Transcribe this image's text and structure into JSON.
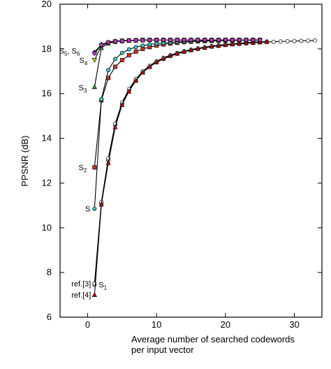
{
  "chart_data": {
    "type": "line",
    "title": "",
    "xlabel": "Average number of searched codewords",
    "xlabel_line2": "per input vector",
    "ylabel": "PPSNR (dB)",
    "xlim": [
      -4,
      34
    ],
    "ylim": [
      6,
      20
    ],
    "xticks": [
      0,
      10,
      20,
      30
    ],
    "yticks": [
      6,
      8,
      10,
      12,
      14,
      16,
      18,
      20
    ],
    "xtick_labels": [
      "0",
      "10",
      "20",
      "30"
    ],
    "ytick_labels": [
      "6",
      "8",
      "10",
      "12",
      "14",
      "16",
      "18",
      "20"
    ],
    "grid": false,
    "legend": "none",
    "series": [
      {
        "label": "S1",
        "color": "#ffffff",
        "marker": "circle",
        "x": [
          1,
          2,
          3,
          4,
          5,
          6,
          7,
          8,
          9,
          10,
          11,
          12,
          13,
          14,
          15,
          16,
          17,
          18,
          19,
          20,
          21,
          22,
          23,
          24,
          25,
          26,
          27,
          28,
          29,
          30,
          31,
          32,
          33
        ],
        "y": [
          7.45,
          11.1,
          13.0,
          14.6,
          15.55,
          16.15,
          16.6,
          16.95,
          17.2,
          17.4,
          17.55,
          17.68,
          17.78,
          17.87,
          17.94,
          18.0,
          18.05,
          18.1,
          18.13,
          18.17,
          18.2,
          18.22,
          18.25,
          18.27,
          18.29,
          18.31,
          18.32,
          18.33,
          18.34,
          18.35,
          18.36,
          18.37,
          18.38
        ]
      },
      {
        "label": "ref.[3]",
        "color": "#ffffff",
        "marker": "circle",
        "x": [
          1,
          2,
          3,
          4,
          5,
          6,
          7,
          8,
          9,
          10,
          11,
          12,
          13,
          14,
          15,
          16,
          17,
          18,
          19,
          20,
          21,
          22,
          23,
          24,
          25,
          26
        ],
        "y": [
          7.5,
          11.15,
          13.1,
          14.65,
          15.6,
          16.2,
          16.65,
          17.0,
          17.25,
          17.45,
          17.6,
          17.72,
          17.82,
          17.9,
          17.97,
          18.03,
          18.08,
          18.13,
          18.16,
          18.2,
          18.23,
          18.25,
          18.28,
          18.3,
          18.32,
          18.33
        ]
      },
      {
        "label": "ref.[4]",
        "color": "#cc0000",
        "marker": "triangle",
        "x": [
          1,
          2,
          3,
          4,
          5,
          6,
          7,
          8,
          9,
          10,
          11,
          12,
          13,
          14,
          15,
          16,
          17,
          18,
          19,
          20,
          21,
          22,
          23,
          24,
          25,
          26
        ],
        "y": [
          7.0,
          11.05,
          12.9,
          14.5,
          15.5,
          16.1,
          16.58,
          16.95,
          17.2,
          17.42,
          17.57,
          17.7,
          17.8,
          17.88,
          17.95,
          18.01,
          18.06,
          18.11,
          18.15,
          18.18,
          18.21,
          18.24,
          18.26,
          18.28,
          18.3,
          18.32
        ]
      },
      {
        "label": "S2",
        "color": "#cc3322",
        "marker": "square",
        "x": [
          1,
          2,
          3,
          4,
          5,
          6,
          7,
          8,
          9,
          10,
          11,
          12,
          13,
          14,
          15,
          16,
          17,
          18,
          19,
          20,
          21,
          22,
          23,
          24,
          25
        ],
        "y": [
          12.7,
          15.7,
          16.7,
          17.2,
          17.5,
          17.72,
          17.88,
          18.0,
          18.08,
          18.15,
          18.2,
          18.24,
          18.27,
          18.3,
          18.32,
          18.34,
          18.35,
          18.36,
          18.37,
          18.38,
          18.38,
          18.39,
          18.39,
          18.4,
          18.4
        ]
      },
      {
        "label": "S",
        "color": "#33cccc",
        "marker": "circle",
        "x": [
          1,
          2,
          3,
          4,
          5,
          6,
          7,
          8,
          9,
          10,
          11,
          12,
          13,
          14,
          15,
          16,
          17,
          18,
          19,
          20,
          21,
          22,
          23,
          24,
          25
        ],
        "y": [
          10.85,
          15.75,
          17.05,
          17.55,
          17.82,
          17.98,
          18.08,
          18.15,
          18.2,
          18.24,
          18.27,
          18.3,
          18.32,
          18.33,
          18.34,
          18.35,
          18.36,
          18.37,
          18.37,
          18.38,
          18.38,
          18.39,
          18.39,
          18.4,
          18.4
        ]
      },
      {
        "label": "S3",
        "color": "#33aa33",
        "marker": "triangle",
        "x": [
          1,
          2,
          3,
          4,
          5,
          6,
          7,
          8,
          9,
          10,
          11,
          12,
          13,
          14,
          15,
          16,
          17,
          18,
          19,
          20,
          21,
          22,
          23,
          24,
          25
        ],
        "y": [
          16.3,
          18.05,
          18.25,
          18.32,
          18.35,
          18.37,
          18.38,
          18.39,
          18.4,
          18.4,
          18.4,
          18.4,
          18.4,
          18.4,
          18.4,
          18.4,
          18.4,
          18.4,
          18.4,
          18.4,
          18.4,
          18.4,
          18.4,
          18.4,
          18.4
        ]
      },
      {
        "label": "S4",
        "color": "#dddd22",
        "marker": "triangle-down",
        "x": [
          1,
          2,
          3,
          4,
          5,
          6,
          7,
          8,
          9,
          10,
          11,
          12,
          13,
          14,
          15,
          16,
          17,
          18,
          19,
          20,
          21,
          22,
          23,
          24,
          25
        ],
        "y": [
          17.5,
          18.15,
          18.28,
          18.33,
          18.36,
          18.38,
          18.39,
          18.4,
          18.4,
          18.4,
          18.4,
          18.4,
          18.4,
          18.4,
          18.4,
          18.4,
          18.4,
          18.4,
          18.4,
          18.4,
          18.4,
          18.4,
          18.4,
          18.4,
          18.4
        ]
      },
      {
        "label": "S5",
        "color": "#3344cc",
        "marker": "diamond",
        "x": [
          1,
          2,
          3,
          4,
          5,
          6,
          7,
          8,
          9,
          10,
          11,
          12,
          13,
          14,
          15,
          16,
          17,
          18,
          19,
          20,
          21,
          22,
          23,
          24,
          25
        ],
        "y": [
          17.85,
          18.2,
          18.3,
          18.35,
          18.37,
          18.38,
          18.39,
          18.4,
          18.4,
          18.4,
          18.4,
          18.4,
          18.4,
          18.4,
          18.4,
          18.4,
          18.4,
          18.4,
          18.4,
          18.4,
          18.4,
          18.4,
          18.4,
          18.4,
          18.4
        ]
      },
      {
        "label": "S6",
        "color": "#cc33cc",
        "marker": "circle",
        "x": [
          1,
          2,
          3,
          4,
          5,
          6,
          7,
          8,
          9,
          10,
          11,
          12,
          13,
          14,
          15,
          16,
          17,
          18,
          19,
          20,
          21,
          22,
          23,
          24,
          25
        ],
        "y": [
          17.8,
          18.18,
          18.3,
          18.34,
          18.36,
          18.38,
          18.39,
          18.39,
          18.4,
          18.4,
          18.4,
          18.4,
          18.4,
          18.4,
          18.4,
          18.4,
          18.4,
          18.4,
          18.4,
          18.4,
          18.4,
          18.4,
          18.4,
          18.4,
          18.4
        ]
      }
    ],
    "annotations": [
      {
        "name": "ann-s5-s6",
        "main": "S",
        "sub": "5",
        "main2": ", S",
        "sub2": "6",
        "x": 1,
        "y": 17.85
      },
      {
        "name": "ann-s4",
        "main": "S",
        "sub": "4",
        "x": 1,
        "y": 17.5
      },
      {
        "name": "ann-s3",
        "main": "S",
        "sub": "3",
        "x": 1,
        "y": 16.3
      },
      {
        "name": "ann-s2",
        "main": "S",
        "sub": "2",
        "x": 1,
        "y": 12.7
      },
      {
        "name": "ann-s",
        "main": "S",
        "sub": "",
        "x": 1,
        "y": 10.85
      },
      {
        "name": "ann-ref3",
        "main": "ref.[3]",
        "sub": "",
        "x": 1,
        "y": 7.5
      },
      {
        "name": "ann-s1",
        "main": "S",
        "sub": "1",
        "x": 1,
        "y": 7.45
      },
      {
        "name": "ann-ref4",
        "main": "ref.[4]",
        "sub": "",
        "x": 1,
        "y": 7.0
      }
    ]
  }
}
